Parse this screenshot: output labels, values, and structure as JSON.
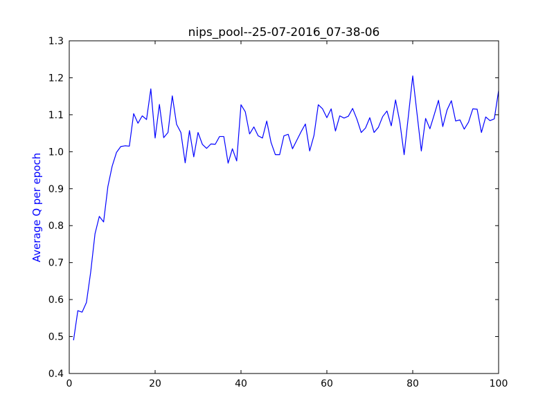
{
  "chart_data": {
    "type": "line",
    "title": "nips_pool--25-07-2016_07-38-06",
    "xlabel": "",
    "ylabel": "Average Q per epoch",
    "ylabel_color": "#0000ff",
    "line_color": "#0000ff",
    "xlim": [
      0,
      100
    ],
    "ylim": [
      0.4,
      1.3
    ],
    "xticks": [
      0,
      20,
      40,
      60,
      80,
      100
    ],
    "yticks": [
      0.4,
      0.5,
      0.6,
      0.7,
      0.8,
      0.9,
      1.0,
      1.1,
      1.2,
      1.3
    ],
    "xtick_labels": [
      "0",
      "20",
      "40",
      "60",
      "80",
      "100"
    ],
    "ytick_labels": [
      "0.4",
      "0.5",
      "0.6",
      "0.7",
      "0.8",
      "0.9",
      "1.0",
      "1.1",
      "1.2",
      "1.3"
    ],
    "grid": false,
    "series": [
      {
        "x": [
          1,
          2,
          3,
          4,
          5,
          6,
          7,
          8,
          9,
          10,
          11,
          12,
          13,
          14,
          15,
          16,
          17,
          18,
          19,
          20,
          21,
          22,
          23,
          24,
          25,
          26,
          27,
          28,
          29,
          30,
          31,
          32,
          33,
          34,
          35,
          36,
          37,
          38,
          39,
          40,
          41,
          42,
          43,
          44,
          45,
          46,
          47,
          48,
          49,
          50,
          51,
          52,
          53,
          54,
          55,
          56,
          57,
          58,
          59,
          60,
          61,
          62,
          63,
          64,
          65,
          66,
          67,
          68,
          69,
          70,
          71,
          72,
          73,
          74,
          75,
          76,
          77,
          78,
          79,
          80,
          81,
          82,
          83,
          84,
          85,
          86,
          87,
          88,
          89,
          90,
          91,
          92,
          93,
          94,
          95,
          96,
          97,
          98,
          99,
          100
        ],
        "values": [
          0.49,
          0.57,
          0.566,
          0.592,
          0.675,
          0.778,
          0.825,
          0.81,
          0.906,
          0.961,
          0.998,
          1.014,
          1.016,
          1.015,
          1.103,
          1.077,
          1.097,
          1.087,
          1.17,
          1.037,
          1.128,
          1.038,
          1.052,
          1.151,
          1.074,
          1.052,
          0.97,
          1.057,
          0.986,
          1.052,
          1.02,
          1.009,
          1.021,
          1.02,
          1.041,
          1.041,
          0.969,
          1.008,
          0.975,
          1.127,
          1.108,
          1.048,
          1.067,
          1.043,
          1.037,
          1.083,
          1.025,
          0.992,
          0.992,
          1.043,
          1.047,
          1.008,
          1.031,
          1.054,
          1.075,
          1.002,
          1.044,
          1.127,
          1.116,
          1.092,
          1.116,
          1.056,
          1.097,
          1.091,
          1.096,
          1.117,
          1.088,
          1.052,
          1.064,
          1.092,
          1.052,
          1.066,
          1.095,
          1.11,
          1.07,
          1.14,
          1.08,
          0.992,
          1.098,
          1.205,
          1.103,
          1.002,
          1.09,
          1.062,
          1.1,
          1.139,
          1.068,
          1.113,
          1.138,
          1.083,
          1.086,
          1.061,
          1.08,
          1.116,
          1.115,
          1.052,
          1.094,
          1.084,
          1.089,
          1.165
        ]
      }
    ]
  }
}
